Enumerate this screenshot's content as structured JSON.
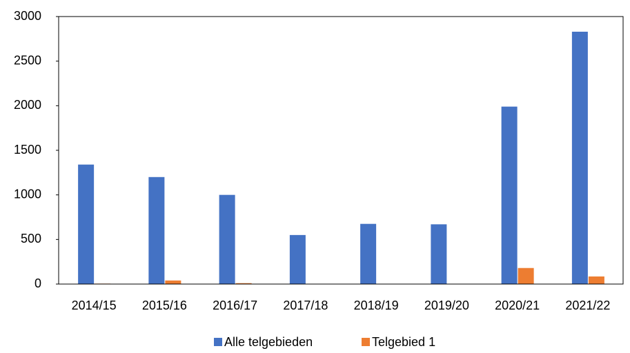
{
  "chart_data": {
    "type": "bar",
    "categories": [
      "2014/15",
      "2015/16",
      "2016/17",
      "2017/18",
      "2018/19",
      "2019/20",
      "2020/21",
      "2021/22"
    ],
    "series": [
      {
        "name": "Alle telgebieden",
        "color": "#4472c4",
        "values": [
          1340,
          1200,
          1000,
          550,
          675,
          670,
          1990,
          2830
        ]
      },
      {
        "name": "Telgebied 1",
        "color": "#ed7d31",
        "values": [
          5,
          40,
          10,
          0,
          3,
          3,
          180,
          85
        ]
      }
    ],
    "ylim": [
      0,
      3000
    ],
    "yticks": [
      0,
      500,
      1000,
      1500,
      2000,
      2500,
      3000
    ],
    "legend": "bottom"
  }
}
